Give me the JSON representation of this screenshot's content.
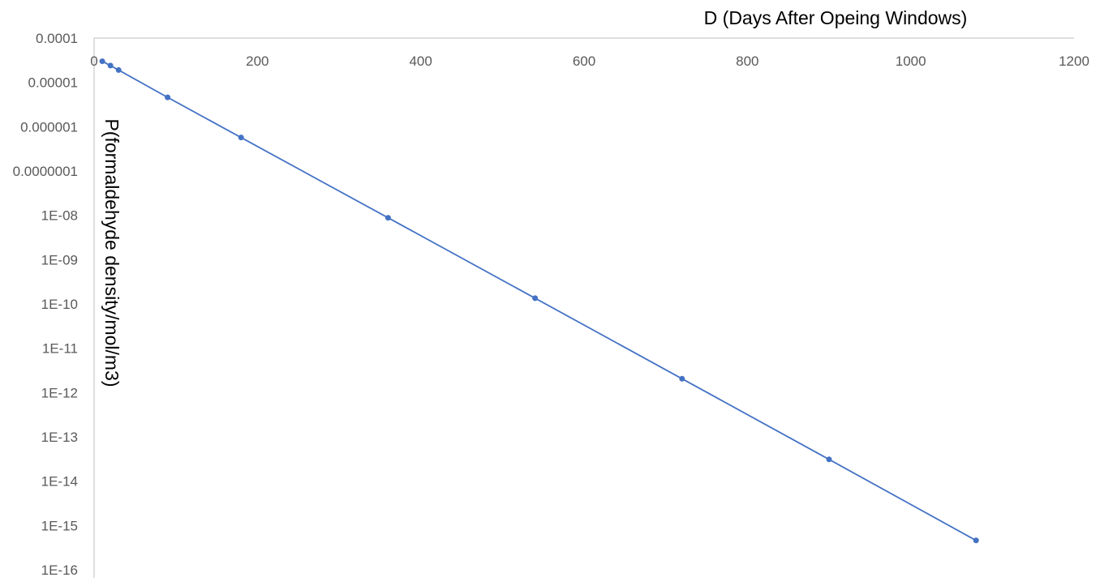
{
  "chart_data": {
    "type": "line",
    "title": "",
    "xlabel": "D (Days After Opeing Windows)",
    "ylabel": "P(formaldehyde density/mol/m3)",
    "xlim": [
      0,
      1200
    ],
    "ylim": [
      1e-16,
      0.0001
    ],
    "yscale": "log",
    "x_axis_position": "top",
    "legend": "none",
    "grid": false,
    "x_ticks": [
      "0",
      "200",
      "400",
      "600",
      "800",
      "1000",
      "1200"
    ],
    "y_ticks": [
      "0.0001",
      "0.00001",
      "0.000001",
      "0.0000001",
      "1E-08",
      "1E-09",
      "1E-10",
      "1E-11",
      "1E-12",
      "1E-13",
      "1E-14",
      "1E-15",
      "1E-16"
    ],
    "series_color": "#4472C4",
    "axis_color": "#BFBFBF",
    "series": [
      {
        "x": [
          10,
          20,
          30,
          90,
          180,
          360,
          540,
          720,
          900,
          1080
        ],
        "y": [
          3e-05,
          2.4e-05,
          1.9e-05,
          4.6e-06,
          5.7e-07,
          8.8e-09,
          1.35e-10,
          2.05e-12,
          3.1e-14,
          4.6e-16
        ]
      }
    ]
  }
}
